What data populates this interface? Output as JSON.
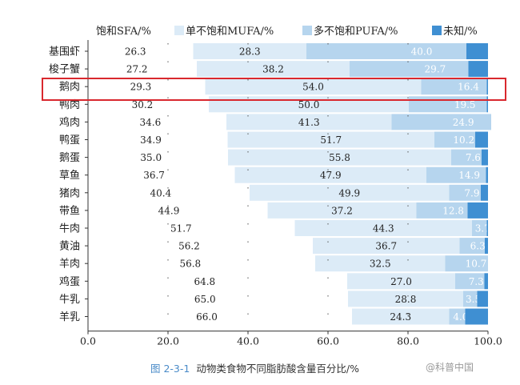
{
  "chart_data": {
    "type": "bar",
    "orientation": "horizontal",
    "stacked": true,
    "categories": [
      "基围虾",
      "梭子蟹",
      "鹅肉",
      "鸭肉",
      "鸡肉",
      "鸭蛋",
      "鹅蛋",
      "草鱼",
      "猪肉",
      "带鱼",
      "牛肉",
      "黄油",
      "羊肉",
      "鸡蛋",
      "牛乳",
      "羊乳"
    ],
    "series": [
      {
        "name": "饱和SFA/%",
        "color": "#ffffff",
        "values": [
          26.3,
          27.2,
          29.3,
          30.2,
          34.6,
          34.9,
          35.0,
          36.7,
          40.4,
          44.9,
          51.7,
          56.2,
          56.8,
          64.8,
          65.0,
          66.0
        ]
      },
      {
        "name": "单不饱和MUFA/%",
        "color": "#dcebf7",
        "values": [
          28.3,
          38.2,
          54.0,
          50.0,
          41.3,
          51.7,
          55.8,
          47.9,
          49.9,
          37.2,
          44.3,
          36.7,
          32.5,
          27.0,
          28.8,
          24.3
        ]
      },
      {
        "name": "多不饱和PUFA/%",
        "color": "#b6d5ee",
        "values": [
          40.0,
          29.7,
          16.4,
          19.5,
          24.9,
          10.2,
          7.6,
          14.9,
          7.9,
          12.8,
          3.7,
          6.3,
          10.7,
          7.3,
          3.5,
          4.0
        ]
      },
      {
        "name": "未知/%",
        "color": "#3f8fd2",
        "values": [
          5.4,
          4.9,
          0.3,
          0.3,
          0.0,
          3.2,
          1.6,
          0.5,
          1.8,
          5.1,
          0.3,
          0.8,
          0.0,
          0.9,
          2.7,
          5.7
        ]
      }
    ],
    "xlim": [
      0,
      100
    ],
    "xticks": [
      "0.0",
      "20.0",
      "40.0",
      "60.0",
      "80.0",
      "100.0"
    ],
    "highlight_category": "鹅肉",
    "legend_position": "top"
  },
  "caption": {
    "figure_label": "图 2-3-1",
    "text": "动物类食物不同脂肪酸含量百分比/%"
  },
  "watermark": "@科普中国"
}
